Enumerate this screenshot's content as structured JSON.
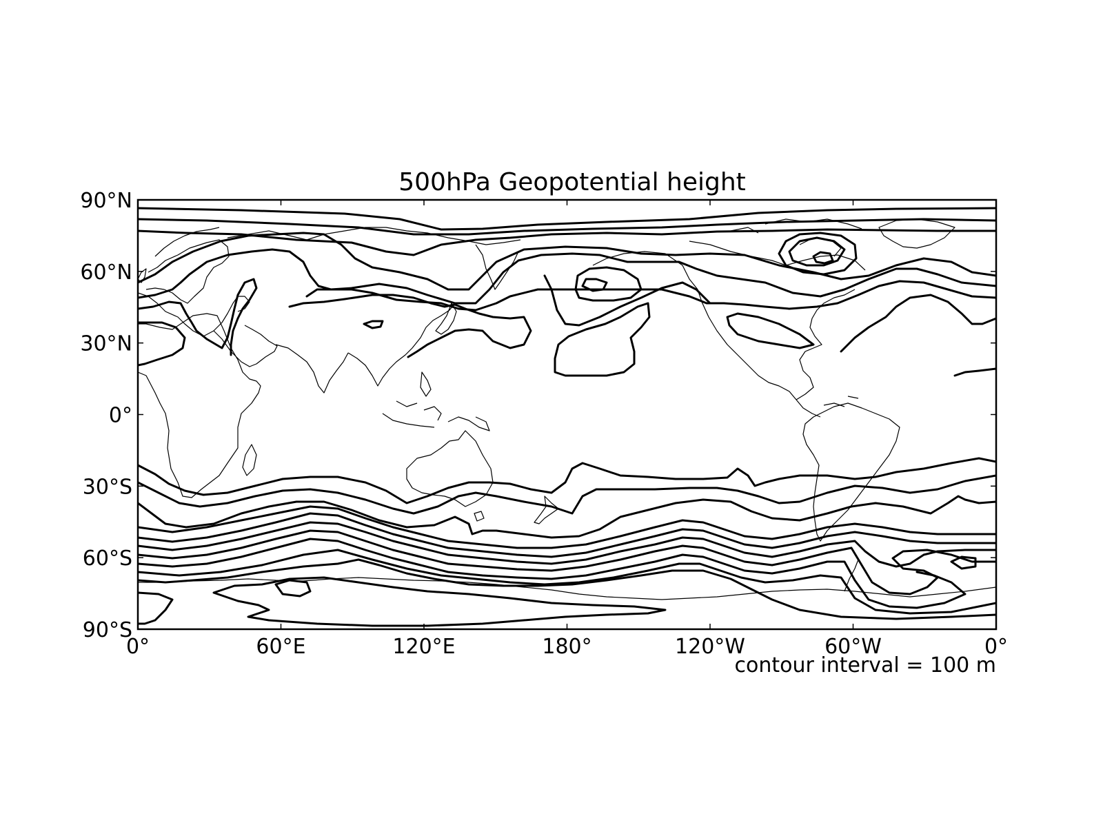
{
  "map": {
    "title": "500hPa Geopotential height",
    "annotation": "contour interval = 100 m",
    "projection": "equirectangular",
    "lon_range": [
      0,
      360
    ],
    "lat_range": [
      -90,
      90
    ],
    "x_ticks": [
      {
        "lon": 0,
        "label": "0°"
      },
      {
        "lon": 60,
        "label": "60°E"
      },
      {
        "lon": 120,
        "label": "120°E"
      },
      {
        "lon": 180,
        "label": "180°"
      },
      {
        "lon": 240,
        "label": "120°W"
      },
      {
        "lon": 300,
        "label": "60°W"
      },
      {
        "lon": 360,
        "label": "0°"
      }
    ],
    "y_ticks": [
      {
        "lat": 90,
        "label": "90°N"
      },
      {
        "lat": 60,
        "label": "60°N"
      },
      {
        "lat": 30,
        "label": "30°N"
      },
      {
        "lat": 0,
        "label": "0°"
      },
      {
        "lat": -30,
        "label": "30°S"
      },
      {
        "lat": -60,
        "label": "60°S"
      },
      {
        "lat": -90,
        "label": "90°S"
      }
    ],
    "colors": {
      "line": "#000000",
      "background": "#ffffff"
    }
  }
}
